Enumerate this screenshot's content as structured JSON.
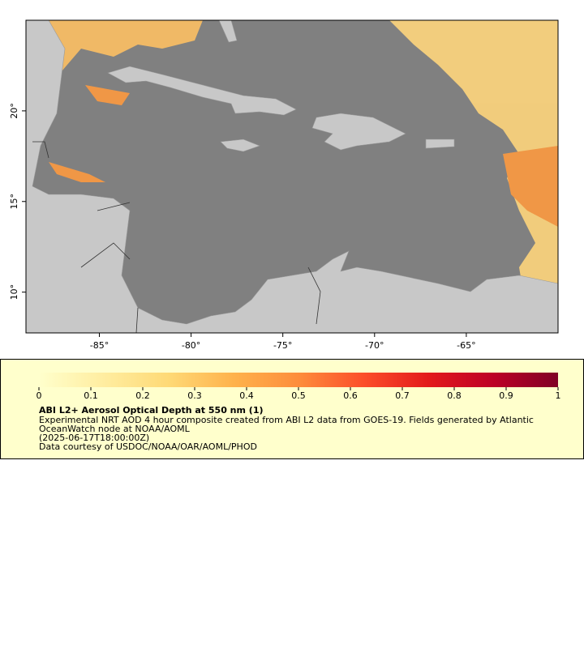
{
  "map": {
    "type": "map",
    "xlim": [
      -89,
      -60
    ],
    "ylim": [
      7.75,
      25
    ],
    "xticks": [
      {
        "value": -85,
        "label": "-85°"
      },
      {
        "value": -80,
        "label": "-80°"
      },
      {
        "value": -75,
        "label": "-75°"
      },
      {
        "value": -70,
        "label": "-70°"
      },
      {
        "value": -65,
        "label": "-65°"
      }
    ],
    "yticks": [
      {
        "value": 10,
        "label": "10°"
      },
      {
        "value": 15,
        "label": "15°"
      },
      {
        "value": 20,
        "label": "20°"
      }
    ]
  },
  "colorbar": {
    "lim": [
      0,
      1
    ],
    "ticks": [
      0,
      0.1,
      0.2,
      0.3,
      0.4,
      0.5,
      0.6,
      0.7,
      0.8,
      0.9,
      1
    ],
    "colors": [
      "#ffffcc",
      "#ffeda0",
      "#fed976",
      "#feb24c",
      "#fd8d3c",
      "#fc4e2a",
      "#e31a1c",
      "#bd0026",
      "#800026"
    ]
  },
  "legend": {
    "title": "ABI L2+ Aerosol Optical Depth at 550 nm (1)",
    "lines": [
      "Experimental NRT AOD 4 hour composite created from ABI L2 data from GOES-19. Fields generated by Atlantic",
      "OceanWatch node at NOAA/AOML",
      "(2025-06-17T18:00:00Z)",
      "Data courtesy of USDOC/NOAA/OAR/AOML/PHOD"
    ]
  }
}
